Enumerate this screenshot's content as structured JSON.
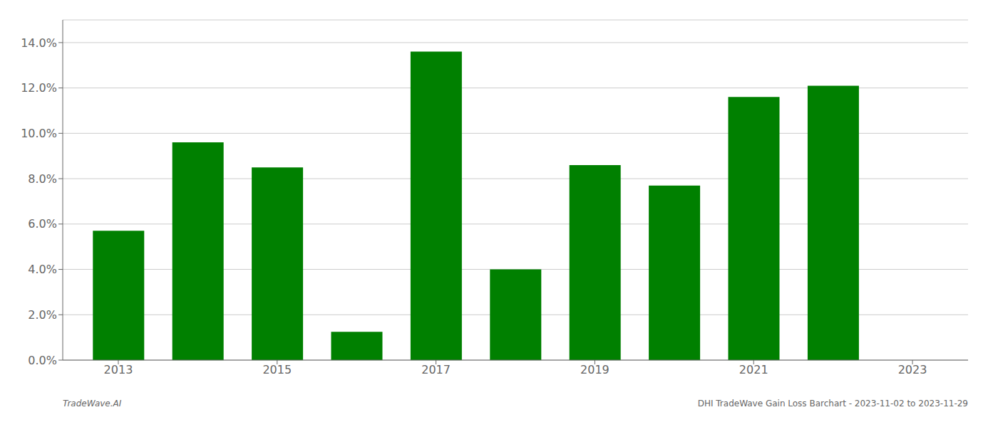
{
  "chart_data": {
    "type": "bar",
    "x": [
      2013,
      2014,
      2015,
      2016,
      2017,
      2018,
      2019,
      2020,
      2021,
      2022
    ],
    "values": [
      0.057,
      0.096,
      0.085,
      0.0125,
      0.136,
      0.04,
      0.086,
      0.077,
      0.116,
      0.121
    ],
    "color": "#008000",
    "xlim": [
      2012.3,
      2023.7
    ],
    "xticks": [
      2013,
      2015,
      2017,
      2019,
      2021,
      2023
    ],
    "ylim": [
      0,
      0.15
    ],
    "yticks": [
      {
        "value": 0,
        "label": "0.0%"
      },
      {
        "value": 0.02,
        "label": "2.0%"
      },
      {
        "value": 0.04,
        "label": "4.0%"
      },
      {
        "value": 0.06,
        "label": "6.0%"
      },
      {
        "value": 0.08,
        "label": "8.0%"
      },
      {
        "value": 0.1,
        "label": "10.0%"
      },
      {
        "value": 0.12,
        "label": "12.0%"
      },
      {
        "value": 0.14,
        "label": "14.0%"
      }
    ],
    "grid": true,
    "annotations": [
      "TradeWave.AI",
      "DHI TradeWave Gain Loss Barchart - 2023-11-02 to 2023-11-29"
    ]
  }
}
